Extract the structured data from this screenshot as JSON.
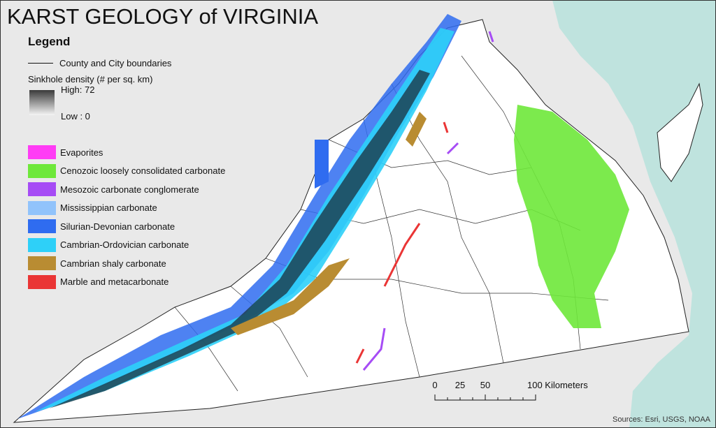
{
  "title": "KARST GEOLOGY of VIRGINIA",
  "legend": {
    "heading": "Legend",
    "boundaries_label": "County and City boundaries",
    "density": {
      "title": "Sinkhole density (# per sq. km)",
      "high": "High: 72",
      "low": "Low : 0"
    },
    "classes": [
      {
        "label": "Evaporites",
        "color": "#ff3cf5"
      },
      {
        "label": "Cenozoic loosely consolidated carbonate",
        "color": "#6ee83a"
      },
      {
        "label": "Mesozoic carbonate conglomerate",
        "color": "#a64cf5"
      },
      {
        "label": "Mississippian carbonate",
        "color": "#91c3fb"
      },
      {
        "label": "Silurian-Devonian carbonate",
        "color": "#2f6cf0"
      },
      {
        "label": "Cambrian-Ordovician carbonate",
        "color": "#2ed0f8"
      },
      {
        "label": "Cambrian shaly carbonate",
        "color": "#b98c32"
      },
      {
        "label": "Marble and metacarbonate",
        "color": "#ea3535"
      }
    ]
  },
  "scale_bar": {
    "ticks": [
      "0",
      "25",
      "50",
      "100 Kilometers"
    ]
  },
  "sources": "Sources: Esri, USGS, NOAA",
  "colors": {
    "water": "#bfe3de",
    "land": "#ffffff",
    "background": "#e9e9e9"
  }
}
